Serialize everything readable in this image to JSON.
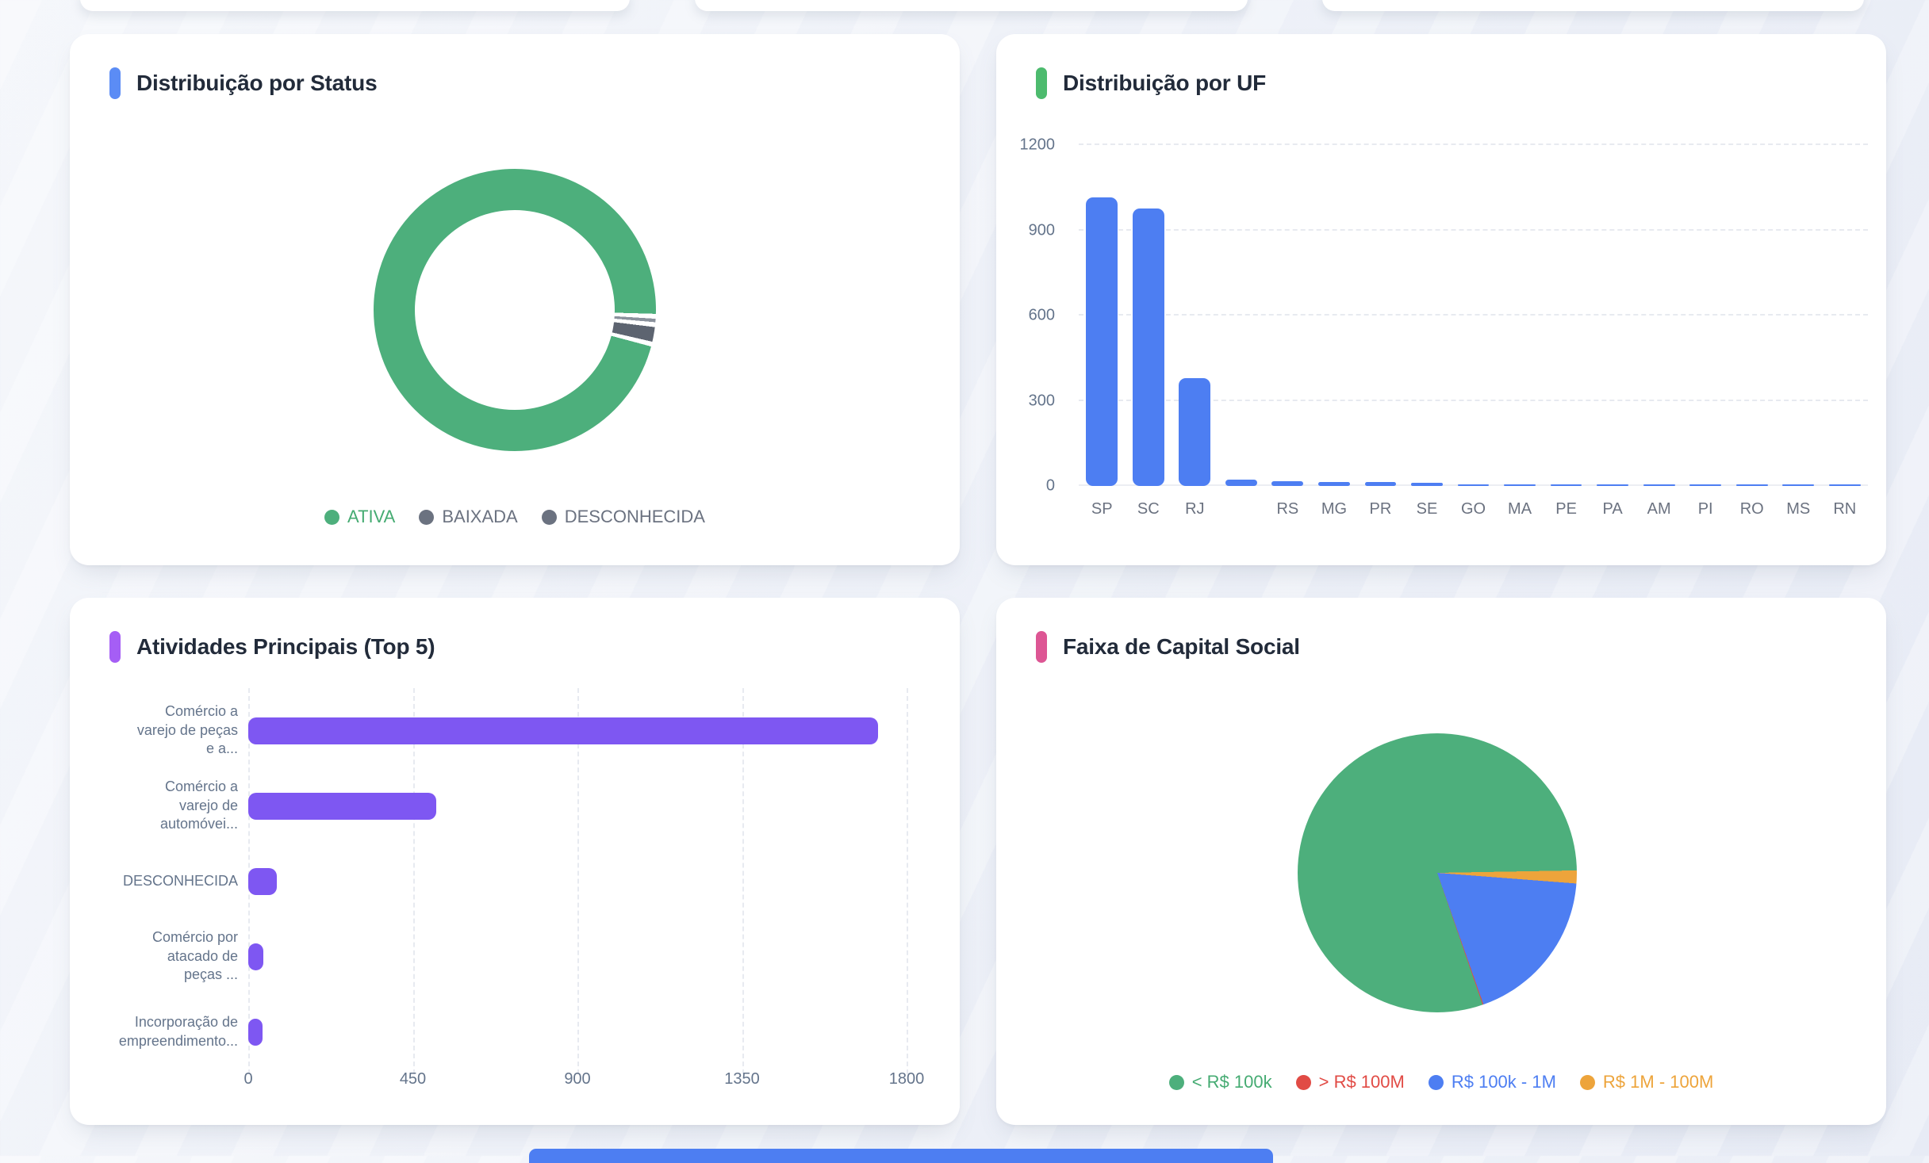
{
  "cards": [
    {
      "title": "Distribuição por Status",
      "accent_color": "#5b8cf5"
    },
    {
      "title": "Distribuição por UF",
      "accent_color": "#4dbb6e"
    },
    {
      "title": "Atividades Principais (Top 5)",
      "accent_color": "#a55ef5"
    },
    {
      "title": "Faixa de Capital Social",
      "accent_color": "#dd5694"
    }
  ],
  "chart_data": [
    {
      "type": "doughnut",
      "title": "Distribuição por Status",
      "slices": [
        {
          "label": "ATIVA",
          "pct": 97.9,
          "color": "#4daf7c",
          "legend_dot_color": "#4daf7c",
          "legend_text_color": "#45ab72"
        },
        {
          "label": "BAIXADA",
          "pct": 0.4,
          "color": "#8a919c",
          "legend_dot_color": "#6b7280",
          "legend_text_color": "#6b7280"
        },
        {
          "label": "DESCONHECIDA",
          "pct": 1.7,
          "color": "#5d6470",
          "legend_dot_color": "#6b7280",
          "legend_text_color": "#6b7280"
        }
      ],
      "start_angle_deg": 105,
      "gap_deg": 2,
      "cutout_pct": 71,
      "legend_position": "bottom"
    },
    {
      "type": "bar",
      "title": "Distribuição por UF",
      "categories": [
        "SP",
        "SC",
        "RJ",
        "",
        "RS",
        "MG",
        "PR",
        "SE",
        "GO",
        "MA",
        "PE",
        "PA",
        "AM",
        "PI",
        "RO",
        "MS",
        "RN"
      ],
      "values": [
        1015,
        977,
        380,
        22,
        16,
        14,
        13,
        10,
        6,
        5,
        5,
        4,
        4,
        3,
        3,
        2,
        2
      ],
      "bar_color": "#4d7ef2",
      "ylim": [
        0,
        1200
      ],
      "yticks": [
        0,
        300,
        600,
        900,
        1200
      ],
      "grid": "horizontal-dashed",
      "legend_position": "none"
    },
    {
      "type": "bar-horizontal",
      "title": "Atividades Principais (Top 5)",
      "categories": [
        "Comércio a\nvarejo de peças\ne a...",
        "Comércio a\nvarejo de\nautomóvei...",
        "DESCONHECIDA",
        "Comércio por\natacado de\npeças ...",
        "Incorporação de\nempreendimento..."
      ],
      "values": [
        1723,
        514,
        79,
        41,
        38
      ],
      "bar_color": "#7e57f2",
      "xlim": [
        0,
        1800
      ],
      "xticks": [
        0,
        450,
        900,
        1350,
        1800
      ],
      "grid": "vertical-dashed",
      "legend_position": "none"
    },
    {
      "type": "pie",
      "title": "Faixa de Capital Social",
      "slices": [
        {
          "label": "< R$ 100k",
          "pct": 80.0,
          "color": "#4daf7c",
          "legend_dot_color": "#4daf7c",
          "legend_text_color": "#45ab72"
        },
        {
          "label": "> R$ 100M",
          "pct": 0.1,
          "color": "#e14b45",
          "legend_dot_color": "#e14b45",
          "legend_text_color": "#e14b45"
        },
        {
          "label": "R$ 100k - 1M",
          "pct": 18.4,
          "color": "#4d7ef2",
          "legend_dot_color": "#4d7ef2",
          "legend_text_color": "#4d7ef2"
        },
        {
          "label": "R$ 1M - 100M",
          "pct": 1.5,
          "color": "#eda43b",
          "legend_dot_color": "#eda43b",
          "legend_text_color": "#eda43b"
        }
      ],
      "start_angle_deg": 161,
      "draw_order": [
        0,
        3,
        2,
        1
      ],
      "gap_deg": 0,
      "legend_position": "bottom"
    }
  ],
  "footer_bar_color": "#4d7ef2"
}
